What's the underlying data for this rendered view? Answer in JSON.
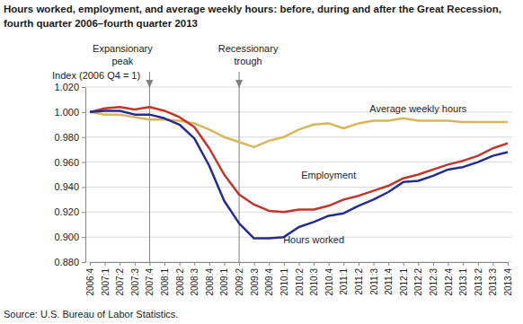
{
  "chart_data": {
    "type": "line",
    "title": "Hours worked, employment, and average weekly hours: before, during and after the Great Recession, fourth quarter 2006–fourth quarter 2013",
    "y_label": "Index (2006 Q4 = 1)",
    "source": "Source: U.S. Bureau of Labor Statistics.",
    "categories": [
      "2006:4",
      "2007:1",
      "2007:2",
      "2007:3",
      "2007:4",
      "2008:1",
      "2008:2",
      "2008:3",
      "2008:4",
      "2009:1",
      "2009:2",
      "2009:3",
      "2009:4",
      "2010:1",
      "2010:2",
      "2010:3",
      "2010:4",
      "2011:1",
      "2011:2",
      "2011:3",
      "2011:4",
      "2012:1",
      "2012:2",
      "2012:3",
      "2012:4",
      "2013:1",
      "2013:2",
      "2013:3",
      "2013:4"
    ],
    "series": [
      {
        "name": "Hours worked",
        "color": "#252C8F",
        "values": [
          1.0,
          1.001,
          1.001,
          0.998,
          0.998,
          0.995,
          0.99,
          0.979,
          0.957,
          0.929,
          0.911,
          0.899,
          0.899,
          0.9,
          0.908,
          0.912,
          0.917,
          0.919,
          0.925,
          0.93,
          0.936,
          0.944,
          0.945,
          0.949,
          0.954,
          0.956,
          0.96,
          0.965,
          0.968
        ]
      },
      {
        "name": "Employment",
        "color": "#C0362C",
        "values": [
          1.0,
          1.003,
          1.004,
          1.002,
          1.004,
          1.001,
          0.996,
          0.988,
          0.971,
          0.95,
          0.934,
          0.926,
          0.921,
          0.92,
          0.922,
          0.922,
          0.925,
          0.93,
          0.933,
          0.937,
          0.941,
          0.947,
          0.95,
          0.954,
          0.958,
          0.961,
          0.965,
          0.971,
          0.975
        ]
      },
      {
        "name": "Average weekly hours",
        "color": "#D9B65B",
        "values": [
          1.0,
          0.998,
          0.998,
          0.996,
          0.994,
          0.994,
          0.993,
          0.991,
          0.986,
          0.98,
          0.976,
          0.972,
          0.977,
          0.98,
          0.986,
          0.99,
          0.991,
          0.987,
          0.991,
          0.993,
          0.993,
          0.995,
          0.993,
          0.993,
          0.993,
          0.992,
          0.992,
          0.992,
          0.992
        ]
      }
    ],
    "annotations": [
      {
        "text": "Expansionary peak",
        "x": "2007:4"
      },
      {
        "text": "Recessionary trough",
        "x": "2009:2"
      }
    ],
    "ylim": [
      0.88,
      1.02
    ],
    "yticks": [
      {
        "value": 0.88,
        "label": "0.880"
      },
      {
        "value": 0.9,
        "label": "0.900"
      },
      {
        "value": 0.92,
        "label": "0.920"
      },
      {
        "value": 0.94,
        "label": "0.940"
      },
      {
        "value": 0.96,
        "label": "0.960"
      },
      {
        "value": 0.98,
        "label": "0.980"
      },
      {
        "value": 1.0,
        "label": "1.000"
      },
      {
        "value": 1.02,
        "label": "1.020"
      }
    ],
    "grid": true
  }
}
